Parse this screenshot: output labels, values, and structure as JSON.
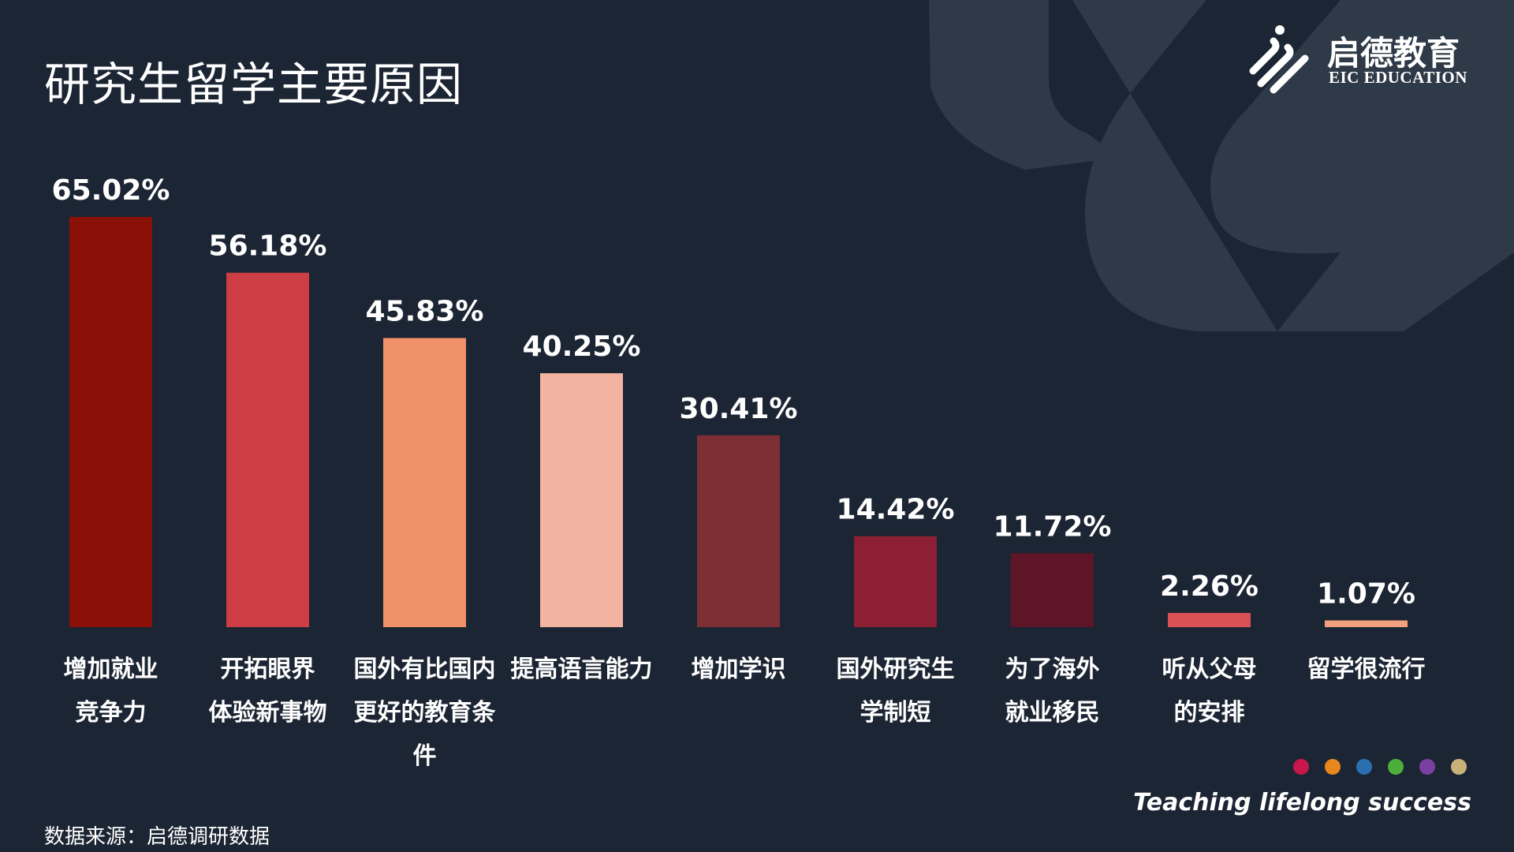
{
  "page": {
    "title": "研究生留学主要原因",
    "source": "数据来源：启德调研数据",
    "slogan": "Teaching lifelong success"
  },
  "logo": {
    "name_cn": "启德教育",
    "name_en": "EIC EDUCATION"
  },
  "palette_dots": [
    "#c8174a",
    "#e8871e",
    "#2a6fb0",
    "#4caf3c",
    "#7a3fa0",
    "#c9b27a"
  ],
  "colors": {
    "background": "#1c2533",
    "decoration": "#2f3a48"
  },
  "chart_data": {
    "type": "bar",
    "title": "研究生留学主要原因",
    "xlabel": "",
    "ylabel": "",
    "ylim": [
      0,
      70
    ],
    "grid": false,
    "legend": "none",
    "categories": [
      [
        "增加就业",
        "竞争力"
      ],
      [
        "开拓眼界",
        "体验新事物"
      ],
      [
        "国外有比国内",
        "更好的教育条",
        "件"
      ],
      [
        "提高语言能力"
      ],
      [
        "增加学识"
      ],
      [
        "国外研究生",
        "学制短"
      ],
      [
        "为了海外",
        "就业移民"
      ],
      [
        "听从父母",
        "的安排"
      ],
      [
        "留学很流行"
      ]
    ],
    "values": [
      65.02,
      56.18,
      45.83,
      40.25,
      30.41,
      14.42,
      11.72,
      2.26,
      1.07
    ],
    "value_labels": [
      "65.02%",
      "56.18%",
      "45.83%",
      "40.25%",
      "30.41%",
      "14.42%",
      "11.72%",
      "2.26%",
      "1.07%"
    ],
    "colors": [
      "#8b1008",
      "#cc3e44",
      "#ef9068",
      "#f2b3a0",
      "#7e2f36",
      "#8c1f33",
      "#5e1527",
      "#d95055",
      "#f2a07e"
    ]
  }
}
